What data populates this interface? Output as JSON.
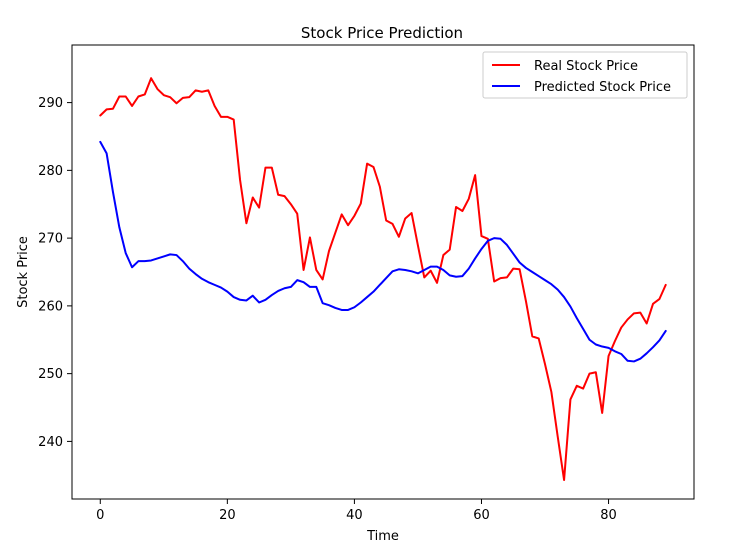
{
  "chart_data": {
    "type": "line",
    "title": "Stock Price Prediction",
    "xlabel": "Time",
    "ylabel": "Stock Price",
    "xlim": [
      -4.45,
      93.45
    ],
    "ylim": [
      231.5,
      298.5
    ],
    "xticks": [
      0,
      20,
      40,
      60,
      80
    ],
    "yticks": [
      240,
      250,
      260,
      270,
      280,
      290
    ],
    "xtick_labels": [
      "0",
      "20",
      "40",
      "60",
      "80"
    ],
    "ytick_labels": [
      "240",
      "250",
      "260",
      "270",
      "280",
      "290"
    ],
    "grid": false,
    "legend_position": "upper right",
    "x": [
      0,
      1,
      2,
      3,
      4,
      5,
      6,
      7,
      8,
      9,
      10,
      11,
      12,
      13,
      14,
      15,
      16,
      17,
      18,
      19,
      20,
      21,
      22,
      23,
      24,
      25,
      26,
      27,
      28,
      29,
      30,
      31,
      32,
      33,
      34,
      35,
      36,
      37,
      38,
      39,
      40,
      41,
      42,
      43,
      44,
      45,
      46,
      47,
      48,
      49,
      50,
      51,
      52,
      53,
      54,
      55,
      56,
      57,
      58,
      59,
      60,
      61,
      62,
      63,
      64,
      65,
      66,
      67,
      68,
      69,
      70,
      71,
      72,
      73,
      74,
      75,
      76,
      77,
      78,
      79,
      80,
      81,
      82,
      83,
      84,
      85,
      86,
      87,
      88,
      89
    ],
    "series": [
      {
        "name": "Real Stock Price",
        "color": "#ff0000",
        "values": [
          288.1,
          289.0,
          289.1,
          290.9,
          290.9,
          289.5,
          290.9,
          291.2,
          293.6,
          292.0,
          291.1,
          290.8,
          289.9,
          290.7,
          290.8,
          291.8,
          291.6,
          291.8,
          289.5,
          287.9,
          287.9,
          287.5,
          278.6,
          272.2,
          276.0,
          274.5,
          280.4,
          280.4,
          276.4,
          276.2,
          275.0,
          273.6,
          265.3,
          270.1,
          265.3,
          263.9,
          268.1,
          270.8,
          273.5,
          271.9,
          273.3,
          275.1,
          281.0,
          280.5,
          277.6,
          272.6,
          272.1,
          270.2,
          272.9,
          273.7,
          268.9,
          264.2,
          265.2,
          263.4,
          267.5,
          268.3,
          274.6,
          274.0,
          275.8,
          279.3,
          270.3,
          269.9,
          263.6,
          264.1,
          264.2,
          265.5,
          265.4,
          260.7,
          255.5,
          255.2,
          251.4,
          247.3,
          240.7,
          234.3,
          246.2,
          248.2,
          247.8,
          250.0,
          250.2,
          244.2,
          252.6,
          254.8,
          256.8,
          258.0,
          258.9,
          259.0,
          257.4,
          260.3,
          261.0,
          263.1
        ]
      },
      {
        "name": "Predicted Stock Price",
        "color": "#0000ff",
        "values": [
          284.2,
          282.5,
          276.8,
          271.6,
          267.8,
          265.7,
          266.6,
          266.6,
          266.7,
          267.0,
          267.3,
          267.6,
          267.5,
          266.6,
          265.5,
          264.7,
          264.0,
          263.5,
          263.1,
          262.7,
          262.1,
          261.3,
          260.9,
          260.8,
          261.5,
          260.5,
          260.9,
          261.6,
          262.2,
          262.6,
          262.8,
          263.8,
          263.5,
          262.8,
          262.8,
          260.4,
          260.1,
          259.7,
          259.4,
          259.4,
          259.8,
          260.5,
          261.3,
          262.1,
          263.1,
          264.1,
          265.1,
          265.4,
          265.3,
          265.1,
          264.8,
          265.3,
          265.8,
          265.8,
          265.3,
          264.5,
          264.3,
          264.4,
          265.5,
          267.0,
          268.4,
          269.6,
          270.0,
          269.9,
          269.0,
          267.7,
          266.4,
          265.6,
          265.0,
          264.4,
          263.8,
          263.2,
          262.4,
          261.3,
          259.9,
          258.2,
          256.6,
          255.0,
          254.3,
          254.0,
          253.8,
          253.3,
          252.9,
          251.9,
          251.8,
          252.2,
          253.0,
          253.9,
          254.9,
          256.3
        ]
      }
    ]
  }
}
